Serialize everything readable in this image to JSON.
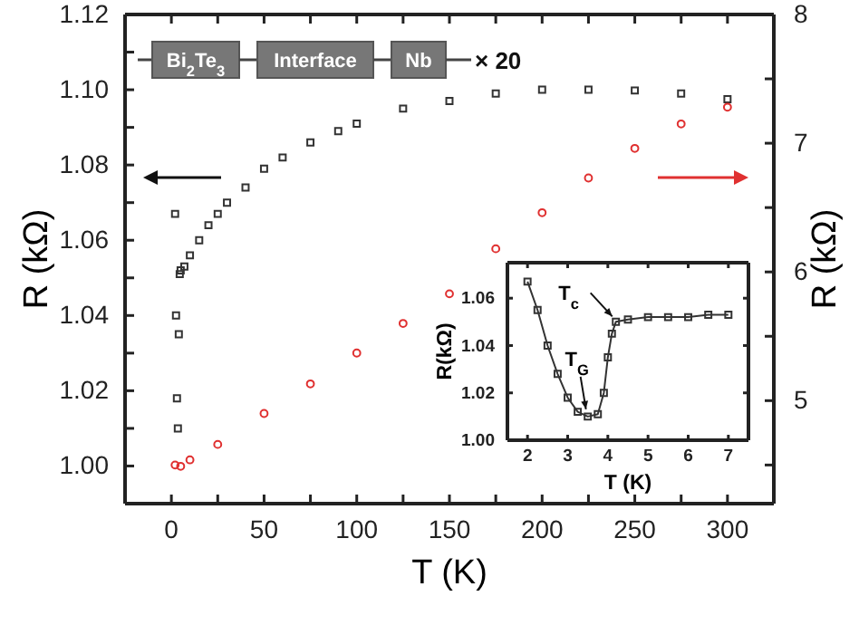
{
  "chart_data": [
    {
      "type": "scatter",
      "xlabel": "T (K)",
      "ylabel": "R (kΩ)",
      "y2label": "R (kΩ)",
      "xlim": [
        -25,
        325
      ],
      "xticks": [
        0,
        {
          "value": 25,
          "label": null
        },
        50,
        {
          "value": 75,
          "label": null
        },
        100,
        {
          "value": 125,
          "label": null
        },
        150,
        {
          "value": 175,
          "label": null
        },
        200,
        {
          "value": 225,
          "label": null
        },
        250,
        {
          "value": 275,
          "label": null
        },
        300
      ],
      "ylim": [
        0.99,
        1.12
      ],
      "yticks": [
        {
          "value": 1.0,
          "label": "1.00"
        },
        {
          "value": 1.01,
          "label": null
        },
        {
          "value": 1.02,
          "label": "1.02"
        },
        {
          "value": 1.03,
          "label": null
        },
        {
          "value": 1.04,
          "label": "1.04"
        },
        {
          "value": 1.05,
          "label": null
        },
        {
          "value": 1.06,
          "label": "1.06"
        },
        {
          "value": 1.07,
          "label": null
        },
        {
          "value": 1.08,
          "label": "1.08"
        },
        {
          "value": 1.09,
          "label": null
        },
        {
          "value": 1.1,
          "label": "1.10"
        },
        {
          "value": 1.11,
          "label": null
        },
        {
          "value": 1.12,
          "label": "1.12"
        }
      ],
      "y2lim": [
        4.2,
        8
      ],
      "y2ticks": [
        {
          "value": 4.5,
          "label": null
        },
        5,
        {
          "value": 5.5,
          "label": null
        },
        6,
        {
          "value": 6.5,
          "label": null
        },
        7,
        {
          "value": 7.5,
          "label": null
        },
        8
      ],
      "grid": false,
      "annotations": [
        "Bi$_{2}$Te$_{3}$",
        "Interface",
        "Nb",
        "× 20"
      ],
      "series": [
        {
          "color": "#333333",
          "marker": "square",
          "x": [
            2,
            2.5,
            3,
            3.5,
            4,
            4.5,
            5,
            7,
            10,
            15,
            20,
            25,
            30,
            40,
            50,
            60,
            75,
            90,
            100,
            125,
            150,
            175,
            200,
            225,
            250,
            275,
            300
          ],
          "values": [
            1.067,
            1.04,
            1.018,
            1.01,
            1.035,
            1.051,
            1.052,
            1.053,
            1.056,
            1.06,
            1.064,
            1.067,
            1.07,
            1.074,
            1.079,
            1.082,
            1.086,
            1.089,
            1.091,
            1.095,
            1.097,
            1.099,
            1.1,
            1.1,
            1.0998,
            1.099,
            1.0975
          ]
        },
        {
          "color": "#e03030",
          "marker": "circle",
          "axis": "y2",
          "x": [
            2,
            5,
            10,
            25,
            50,
            75,
            100,
            125,
            150,
            175,
            200,
            225,
            250,
            275,
            300
          ],
          "values": [
            4.5,
            4.49,
            4.54,
            4.66,
            4.9,
            5.13,
            5.37,
            5.6,
            5.83,
            6.18,
            6.46,
            6.73,
            6.96,
            7.15,
            7.28
          ]
        }
      ]
    },
    {
      "type": "line",
      "xlabel": "T (K)",
      "ylabel": "R(kΩ)",
      "xlim": [
        1.5,
        7.5
      ],
      "xticks": [
        2,
        3,
        4,
        5,
        6,
        7
      ],
      "ylim": [
        1.0,
        1.075
      ],
      "yticks": [
        {
          "value": 1.0,
          "label": "1.00"
        },
        1.02,
        1.04,
        1.06
      ],
      "grid": false,
      "annotations": [
        {
          "text": "T$_{c}$",
          "x": 4.2,
          "y": 1.05
        },
        {
          "text": "T$_{G}$",
          "x": 3.5,
          "y": 1.01
        }
      ],
      "series": [
        {
          "color": "#333333",
          "marker": "square",
          "line_style": "solid",
          "x": [
            2,
            2.25,
            2.5,
            2.75,
            3,
            3.25,
            3.5,
            3.75,
            3.9,
            4,
            4.1,
            4.2,
            4.5,
            5,
            5.5,
            6,
            6.5,
            7
          ],
          "values": [
            1.067,
            1.055,
            1.04,
            1.028,
            1.018,
            1.012,
            1.01,
            1.011,
            1.02,
            1.035,
            1.045,
            1.05,
            1.051,
            1.052,
            1.052,
            1.052,
            1.053,
            1.053
          ]
        }
      ]
    }
  ]
}
